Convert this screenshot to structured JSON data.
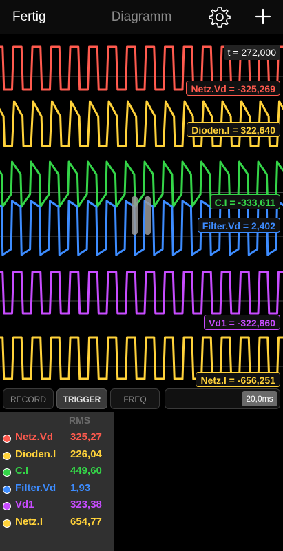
{
  "header": {
    "done_label": "Fertig",
    "title": "Diagramm"
  },
  "time_readout": "t = 272,000",
  "channels": [
    {
      "name": "Netz.Vd",
      "label": "Netz.Vd = -325,269",
      "color": "#ff5a4e",
      "shape": "square",
      "rms": "325,27"
    },
    {
      "name": "Dioden.I",
      "label": "Dioden.I = 322,640",
      "color": "#ffd23a",
      "shape": "sawtooth",
      "rms": "226,04"
    },
    {
      "name": "C.I",
      "label": "C.I = -333,611",
      "color": "#34d548",
      "shape": "trapezoid",
      "rms": "449,60"
    },
    {
      "name": "Filter.Vd",
      "label": "Filter.Vd = 2,402",
      "color": "#3d8cff",
      "shape": "trapezoid2",
      "rms": "1,93"
    },
    {
      "name": "Vd1",
      "label": "Vd1 = -322,860",
      "color": "#c84cff",
      "shape": "square",
      "rms": "323,38"
    },
    {
      "name": "Netz.I",
      "label": "Netz.I = -656,251",
      "color": "#ffd23a",
      "shape": "square",
      "rms": "654,77"
    }
  ],
  "tabs": {
    "record": "RECORD",
    "trigger": "TRIGGER",
    "freq": "FREQ"
  },
  "timebase": "20,0ms",
  "rms_header": "RMS"
}
